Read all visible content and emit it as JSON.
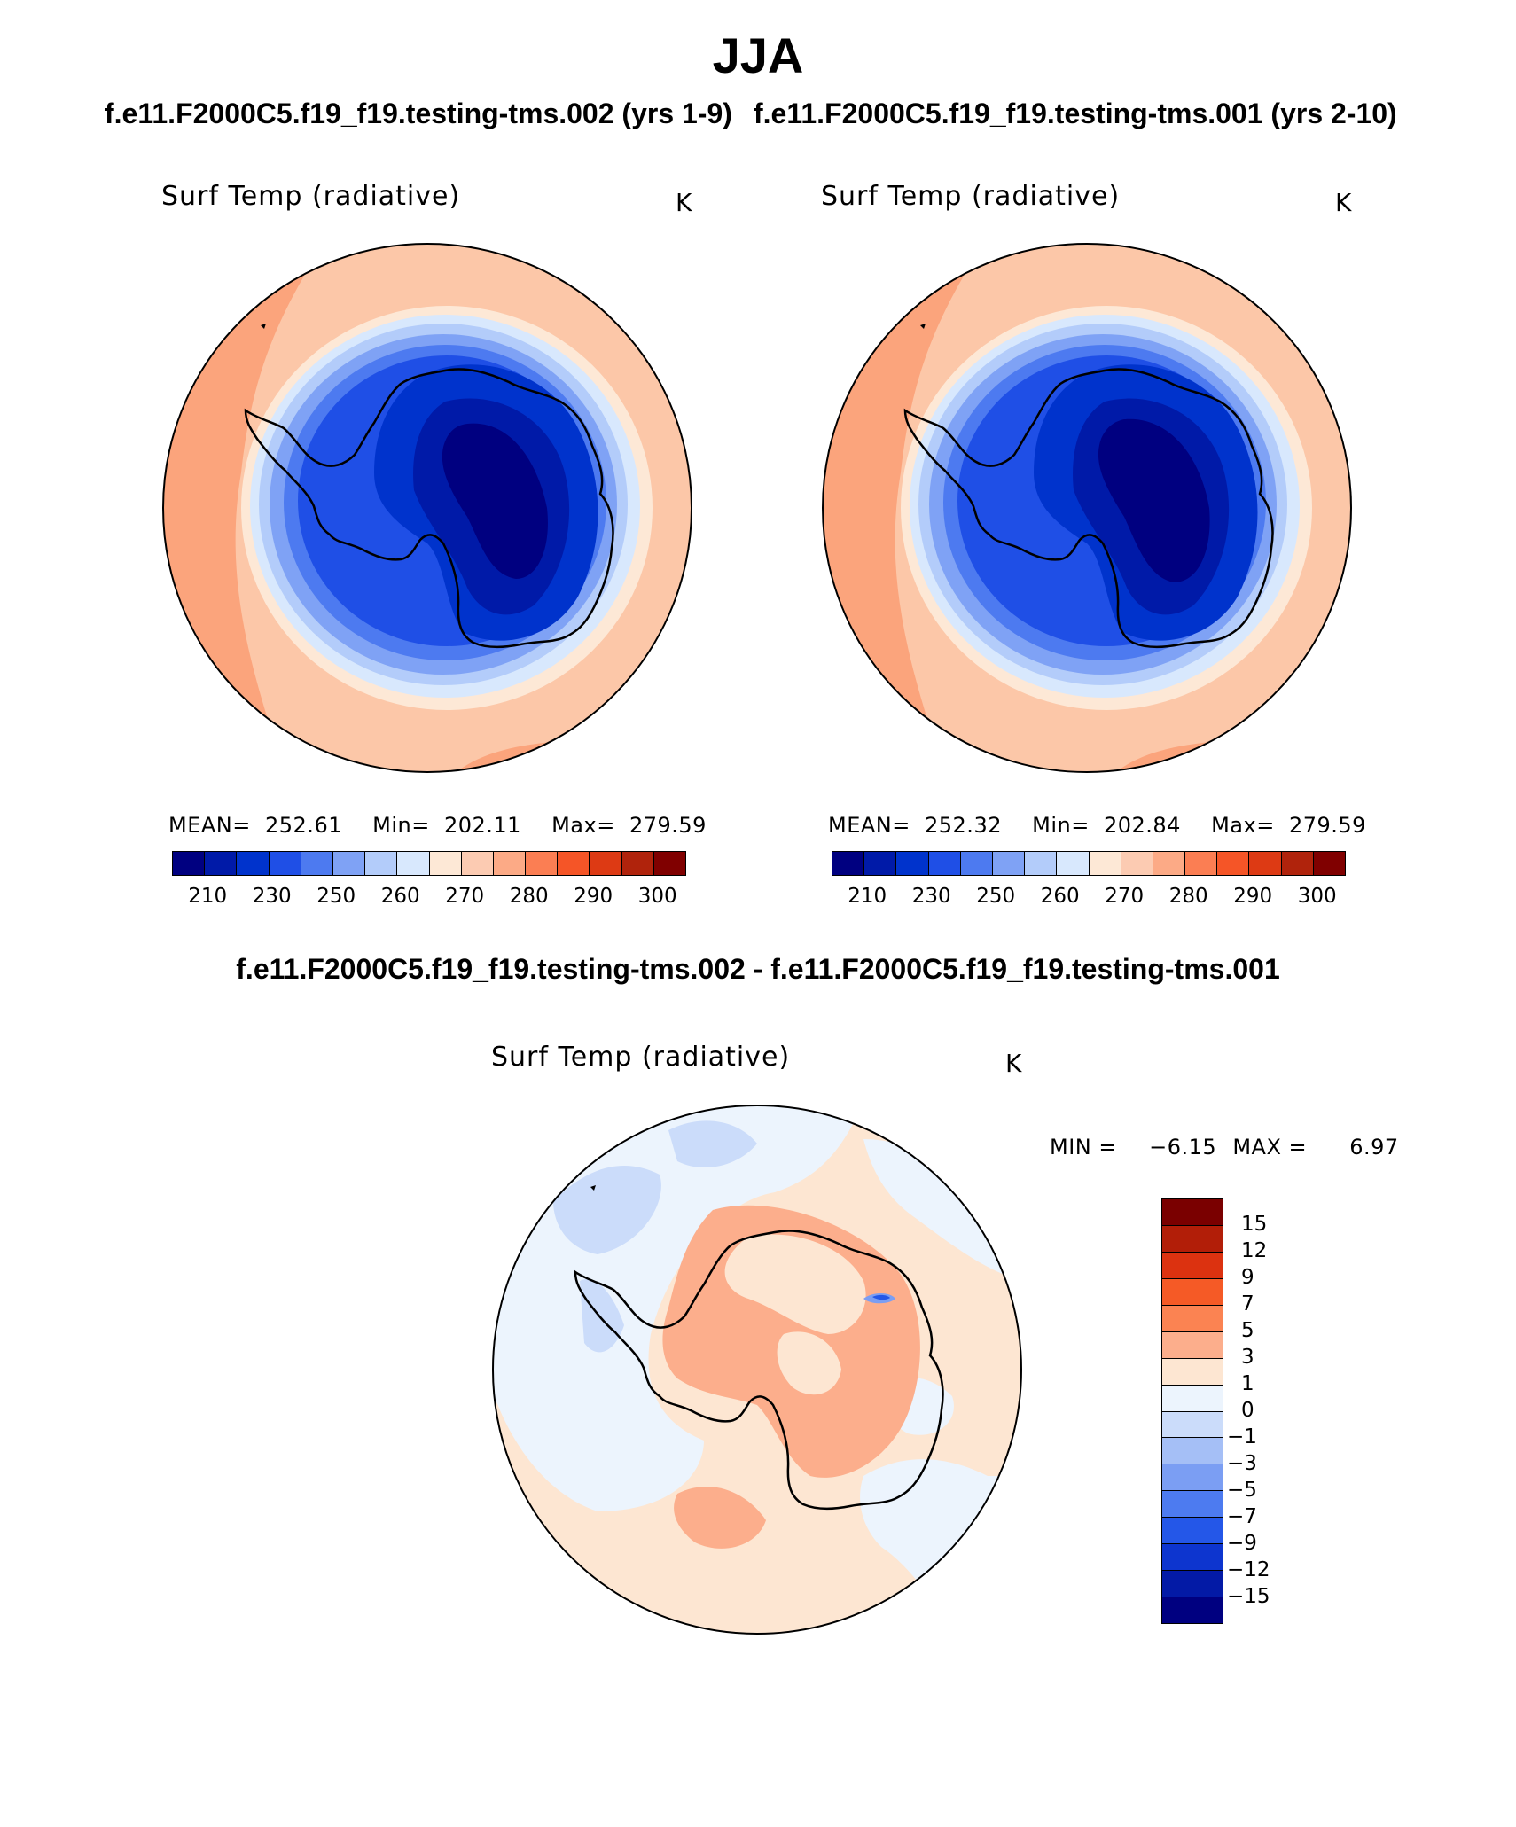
{
  "header": {
    "title": "JJA",
    "case_left": "f.e11.F2000C5.f19_f19.testing-tms.002 (yrs 1-9)",
    "case_right": "f.e11.F2000C5.f19_f19.testing-tms.001 (yrs 2-10)",
    "diff_title": "f.e11.F2000C5.f19_f19.testing-tms.002 - f.e11.F2000C5.f19_f19.testing-tms.001"
  },
  "panels": {
    "left": {
      "variable": "Surf Temp (radiative)",
      "unit": "K",
      "mean_label": "MEAN=",
      "mean": "252.61",
      "min_label": "Min=",
      "min": "202.11",
      "max_label": "Max=",
      "max": "279.59"
    },
    "right": {
      "variable": "Surf Temp (radiative)",
      "unit": "K",
      "mean_label": "MEAN=",
      "mean": "252.32",
      "min_label": "Min=",
      "min": "202.84",
      "max_label": "Max=",
      "max": "279.59"
    },
    "diff": {
      "variable": "Surf Temp (radiative)",
      "unit": "K",
      "min_label": "MIN =",
      "min": "−6.15",
      "max_label": "MAX =",
      "max": "6.97"
    }
  },
  "colorbar_abs": {
    "colors": [
      "#000080",
      "#001aa8",
      "#0033cc",
      "#1f4fe6",
      "#4d7af0",
      "#7fa2f5",
      "#b3ccfa",
      "#d8e8fd",
      "#fde8d6",
      "#fccbb2",
      "#fcaa86",
      "#fb7e53",
      "#f55527",
      "#dd3a14",
      "#b0230c",
      "#800000"
    ],
    "ticks": [
      "210",
      "230",
      "250",
      "260",
      "270",
      "280",
      "290",
      "300"
    ]
  },
  "colorbar_diff": {
    "colors": [
      "#7a0000",
      "#b21e08",
      "#dc3210",
      "#f55a26",
      "#fb8352",
      "#fcae8c",
      "#fde6d2",
      "#ecf4fd",
      "#cbdcfa",
      "#a5bff6",
      "#7b9ef3",
      "#4d7bf0",
      "#2457e8",
      "#0d35cf",
      "#031aa6",
      "#000080"
    ],
    "ticks": [
      "15",
      "12",
      "9",
      "7",
      "5",
      "3",
      "1",
      "0",
      "−1",
      "−3",
      "−5",
      "−7",
      "−9",
      "−12",
      "−15"
    ]
  },
  "icons": {
    "map_left": "antarctica-polar-map",
    "map_right": "antarctica-polar-map",
    "map_diff": "antarctica-difference-map"
  }
}
